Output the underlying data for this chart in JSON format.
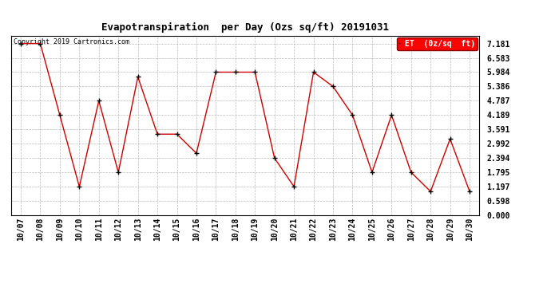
{
  "title": "Evapotranspiration  per Day (Ozs sq/ft) 20191031",
  "copyright": "Copyright 2019 Cartronics.com",
  "legend_label": "ET  (0z/sq  ft)",
  "x_labels": [
    "10/07",
    "10/08",
    "10/09",
    "10/10",
    "10/11",
    "10/12",
    "10/13",
    "10/14",
    "10/15",
    "10/16",
    "10/17",
    "10/18",
    "10/19",
    "10/20",
    "10/21",
    "10/22",
    "10/23",
    "10/24",
    "10/25",
    "10/26",
    "10/27",
    "10/28",
    "10/29",
    "10/30"
  ],
  "y_values": [
    7.181,
    7.181,
    4.189,
    1.197,
    4.787,
    1.795,
    5.784,
    3.392,
    3.392,
    2.594,
    5.984,
    5.984,
    5.984,
    2.394,
    1.197,
    5.984,
    5.386,
    4.189,
    1.795,
    4.189,
    1.795,
    0.997,
    3.191,
    0.997
  ],
  "y_ticks": [
    0.0,
    0.598,
    1.197,
    1.795,
    2.394,
    2.992,
    3.591,
    4.189,
    4.787,
    5.386,
    5.984,
    6.583,
    7.181
  ],
  "line_color": "#cc0000",
  "marker_color": "#000000",
  "background_color": "#ffffff",
  "grid_color": "#aaaaaa",
  "title_fontsize": 9,
  "tick_fontsize": 7,
  "copyright_fontsize": 6,
  "legend_fontsize": 7,
  "ylim": [
    0.0,
    7.5
  ],
  "figwidth": 6.9,
  "figheight": 3.75,
  "dpi": 100
}
